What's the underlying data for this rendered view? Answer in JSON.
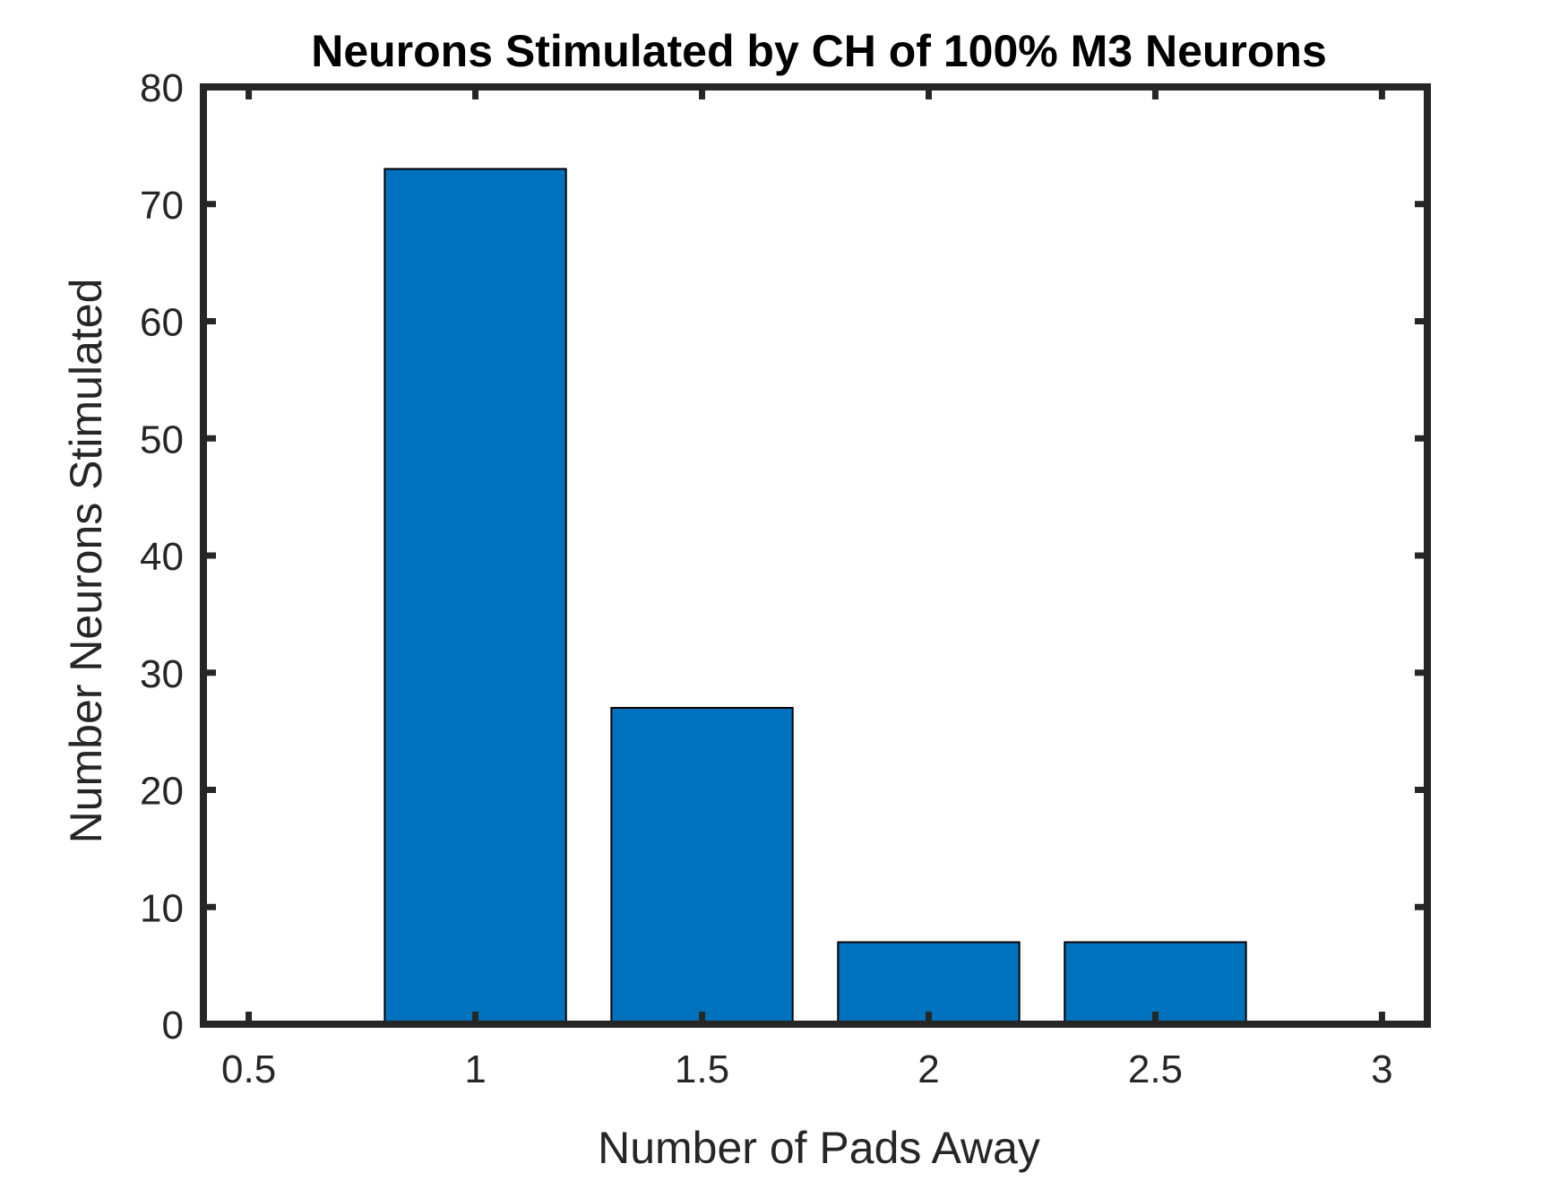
{
  "chart_data": {
    "type": "bar",
    "title": "Neurons Stimulated by CH of 100% M3 Neurons",
    "xlabel": "Number of Pads Away",
    "ylabel": "Number Neurons Stimulated",
    "x": [
      0.5,
      1,
      1.5,
      2,
      2.5,
      3
    ],
    "values": [
      0,
      73,
      27,
      7,
      7,
      0
    ],
    "xlim": [
      0.4,
      3.1
    ],
    "ylim": [
      0,
      80
    ],
    "xticks": [
      0.5,
      1,
      1.5,
      2,
      2.5,
      3
    ],
    "xtick_labels": [
      "0.5",
      "1",
      "1.5",
      "2",
      "2.5",
      "3"
    ],
    "yticks": [
      0,
      10,
      20,
      30,
      40,
      50,
      60,
      70,
      80
    ],
    "ytick_labels": [
      "0",
      "10",
      "20",
      "30",
      "40",
      "50",
      "60",
      "70",
      "80"
    ],
    "bar_width": 0.4,
    "bar_color": "#0072BD",
    "axis_color": "#262626",
    "grid": false,
    "legend": "none"
  }
}
